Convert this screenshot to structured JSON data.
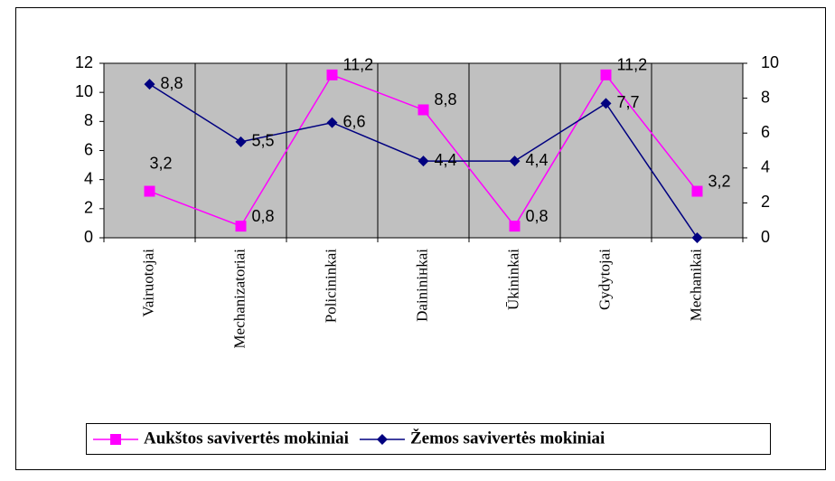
{
  "chart_data": {
    "type": "line",
    "categories": [
      "Vairuotojai",
      "Mechanizatoriai",
      "Policininkai",
      "Daininінkai",
      "Ūkininkai",
      "Gydytojai",
      "Mechanikai"
    ],
    "series": [
      {
        "name": "Aukštos savivertės mokiniai",
        "color": "#ff00ff",
        "marker": "square",
        "axis": "y",
        "values": [
          3.2,
          0.8,
          11.2,
          8.8,
          0.8,
          11.2,
          3.2
        ],
        "value_labels": [
          "3,2",
          "0,8",
          "11,2",
          "8,8",
          "0,8",
          "11,2",
          "3,2"
        ]
      },
      {
        "name": "Žemos savivertės mokiniai",
        "color": "#000080",
        "marker": "diamond",
        "axis": "y2",
        "values": [
          8.8,
          5.5,
          6.6,
          4.4,
          4.4,
          7.7,
          0
        ],
        "value_labels": [
          "8,8",
          "5,5",
          "6,6",
          "4,4",
          "4,4",
          "7,7",
          null
        ]
      }
    ],
    "ylim": [
      0,
      12
    ],
    "yticks": [
      0,
      2,
      4,
      6,
      8,
      10,
      12
    ],
    "y2lim": [
      0,
      10
    ],
    "y2ticks": [
      0,
      2,
      4,
      6,
      8,
      10
    ],
    "plot_background": "#c0c0c0",
    "grid": "vertical",
    "legend": "bottom"
  }
}
